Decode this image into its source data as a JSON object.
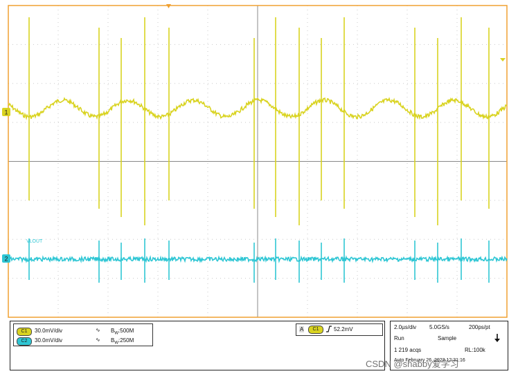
{
  "scope": {
    "background": "#ffffff",
    "grid_color": "#c8c8c8",
    "frame_color": "#f0a030",
    "ch1_color": "#d9d320",
    "ch2_color": "#2ec6d4",
    "ch1_marker": "1",
    "ch2_marker": "2",
    "ch2_trace_label": "VLOUT",
    "ch1_spikes": [
      42,
      143,
      175,
      209,
      244,
      367,
      398,
      432,
      464,
      497,
      599,
      632,
      666,
      706
    ],
    "ch2_spikes": [
      42,
      143,
      175,
      209,
      244,
      367,
      398,
      432,
      464,
      497,
      599,
      632,
      666,
      706
    ]
  },
  "channels": [
    {
      "id": "C1",
      "scale": "30.0mV/div",
      "bw_label": "B",
      "bw_sub": "W",
      "bw_value": ":500M",
      "color": "#d9d320"
    },
    {
      "id": "C2",
      "scale": "30.0mV/div",
      "bw_label": "B",
      "bw_sub": "W",
      "bw_value": ":250M",
      "color": "#2ec6d4"
    }
  ],
  "trigger": {
    "mode": "A",
    "source": "C1",
    "slope_icon": "rising-edge-icon",
    "level": "52.2mV"
  },
  "acquisition": {
    "timebase": "2.0µs/div",
    "sample_rate": "5.0GS/s",
    "resolution": "200ps/pt",
    "state": "Run",
    "mode": "Sample",
    "acqs": "1 219 acqs",
    "record_length": "RL:100k",
    "footer": "Auto  February 26, 2023   12:31:16"
  },
  "watermark": "CSDN @shabby爱学习"
}
